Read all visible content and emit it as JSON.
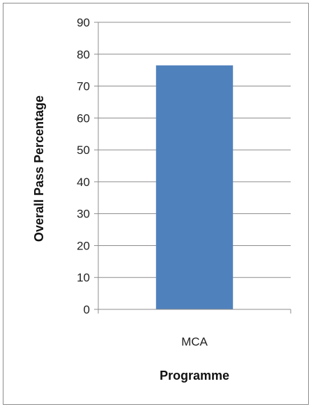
{
  "chart_data": {
    "type": "bar",
    "categories": [
      "MCA"
    ],
    "values": [
      76.5
    ],
    "title": "",
    "xlabel": "Programme",
    "ylabel": "Overall Pass Percentage",
    "ylim": [
      0,
      90
    ],
    "yticks": [
      0,
      10,
      20,
      30,
      40,
      50,
      60,
      70,
      80,
      90
    ],
    "grid": true,
    "legend": "none",
    "colors": {
      "bar": "#4f81bd",
      "grid": "#8c8c8c",
      "axis": "#8c8c8c"
    }
  }
}
